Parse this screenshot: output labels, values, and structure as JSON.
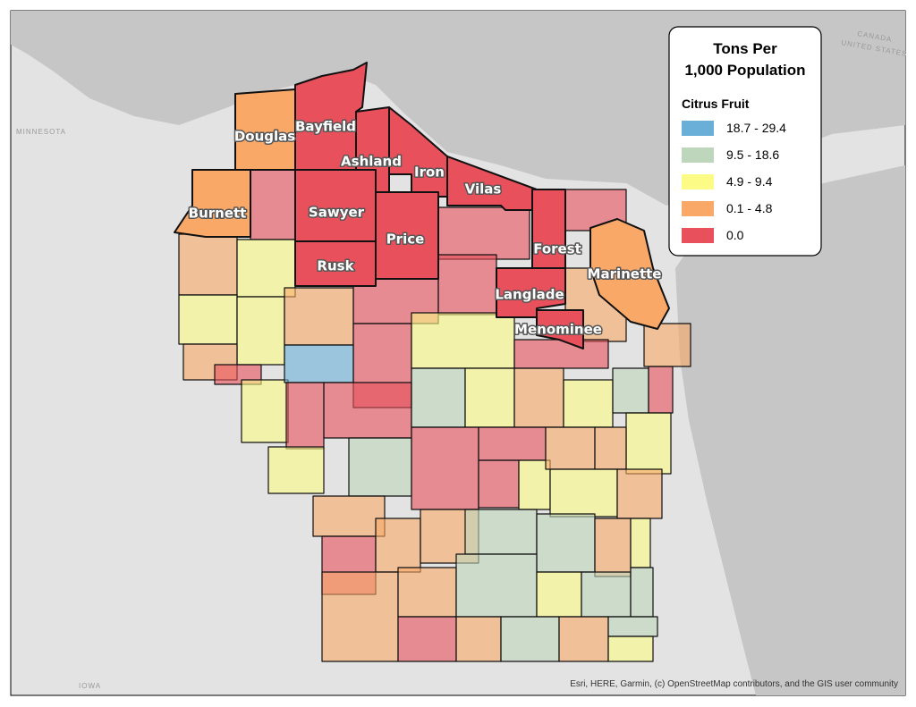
{
  "legend": {
    "title": [
      "Tons Per",
      "1,000 Population"
    ],
    "subtitle": "Citrus Fruit",
    "items": [
      {
        "label": "18.7 - 29.4",
        "color": "#6aafd8"
      },
      {
        "label": "9.5 - 18.6",
        "color": "#bed6bb"
      },
      {
        "label": "4.9 - 9.4",
        "color": "#fbfb85"
      },
      {
        "label": "0.1 - 4.8",
        "color": "#f9a868"
      },
      {
        "label": "0.0",
        "color": "#e8505b"
      }
    ]
  },
  "county_labels": [
    "Douglas",
    "Bayfield",
    "Ashland",
    "Iron",
    "Vilas",
    "Sawyer",
    "Price",
    "Rusk",
    "Burnett",
    "Forest",
    "Marinette",
    "Langlade",
    "Menominee"
  ],
  "background_labels": {
    "minnesota": "MINNESOTA",
    "iowa": "IOWA",
    "canada": "CANADA",
    "united_states": "UNITED STATES"
  },
  "attribution": "Esri, HERE, Garmin, (c) OpenStreetMap contributors, and the GIS user community"
}
